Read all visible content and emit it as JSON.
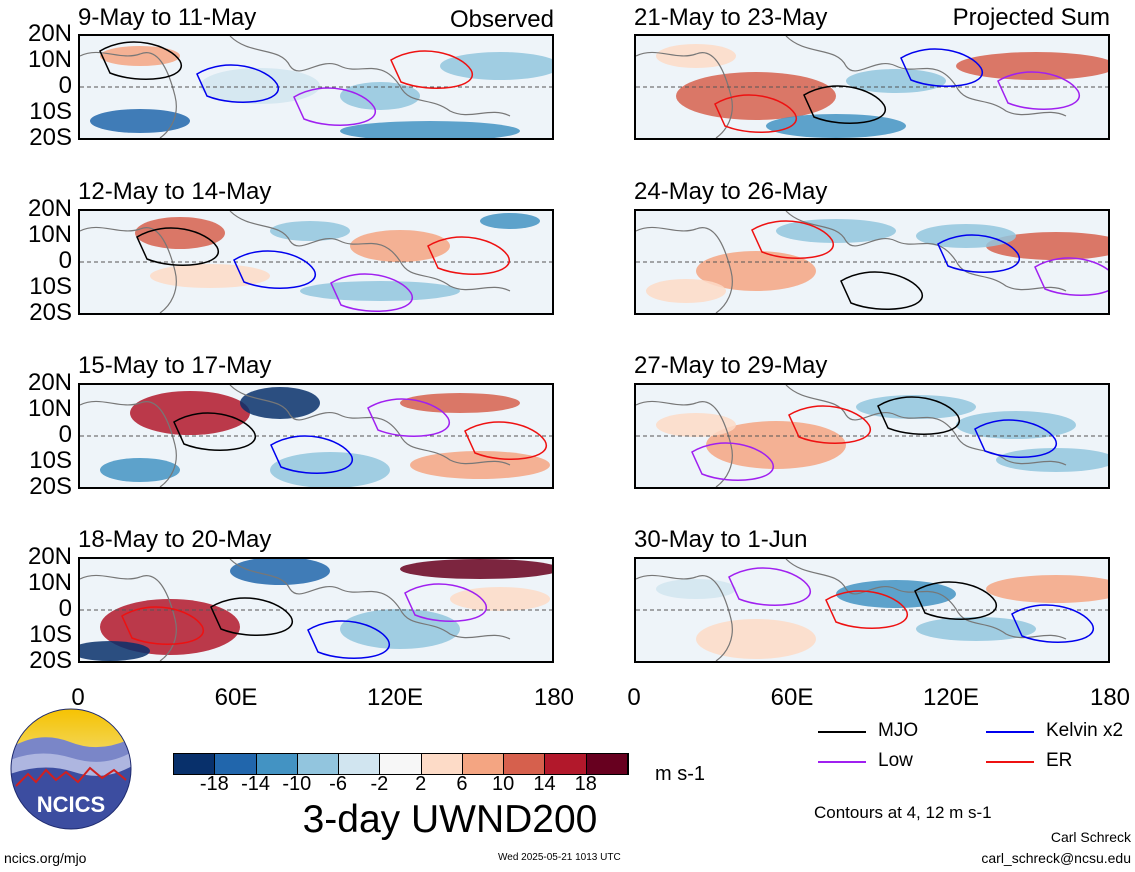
{
  "observed_label": "Observed",
  "projected_label": "Projected Sum",
  "panels_left": [
    {
      "title": "9-May to 11-May"
    },
    {
      "title": "12-May to 14-May"
    },
    {
      "title": "15-May to 17-May"
    },
    {
      "title": "18-May to 20-May"
    }
  ],
  "panels_right": [
    {
      "title": "21-May to 23-May"
    },
    {
      "title": "24-May to 26-May"
    },
    {
      "title": "27-May to 29-May"
    },
    {
      "title": "30-May to 1-Jun"
    }
  ],
  "lat_ticks": [
    "20N",
    "10N",
    "0",
    "10S",
    "20S"
  ],
  "lon_ticks": [
    "0",
    "60E",
    "120E",
    "180"
  ],
  "colorbar": {
    "labels": [
      "-18",
      "-14",
      "-10",
      "-6",
      "-2",
      "2",
      "6",
      "10",
      "14",
      "18"
    ],
    "colors": [
      "#08306b",
      "#2166ac",
      "#4393c3",
      "#92c5de",
      "#d1e5f0",
      "#f7f7f7",
      "#fddbc7",
      "#f4a582",
      "#d6604d",
      "#b2182b",
      "#67001f"
    ],
    "units": "m s-1",
    "title": "3-day UWND200"
  },
  "legend": {
    "items": [
      {
        "label": "MJO",
        "color": "#000000"
      },
      {
        "label": "Kelvin x2",
        "color": "#0000ee"
      },
      {
        "label": "Low",
        "color": "#a020f0"
      },
      {
        "label": "ER",
        "color": "#ee1111"
      }
    ],
    "contours_note": "Contours at 4, 12 m s-1"
  },
  "logo_text": "NCICS",
  "footer": {
    "url": "ncics.org/mjo",
    "timestamp": "Wed 2025-05-21 1013 UTC",
    "author": "Carl Schreck",
    "email": "carl_schreck@ncsu.edu"
  }
}
